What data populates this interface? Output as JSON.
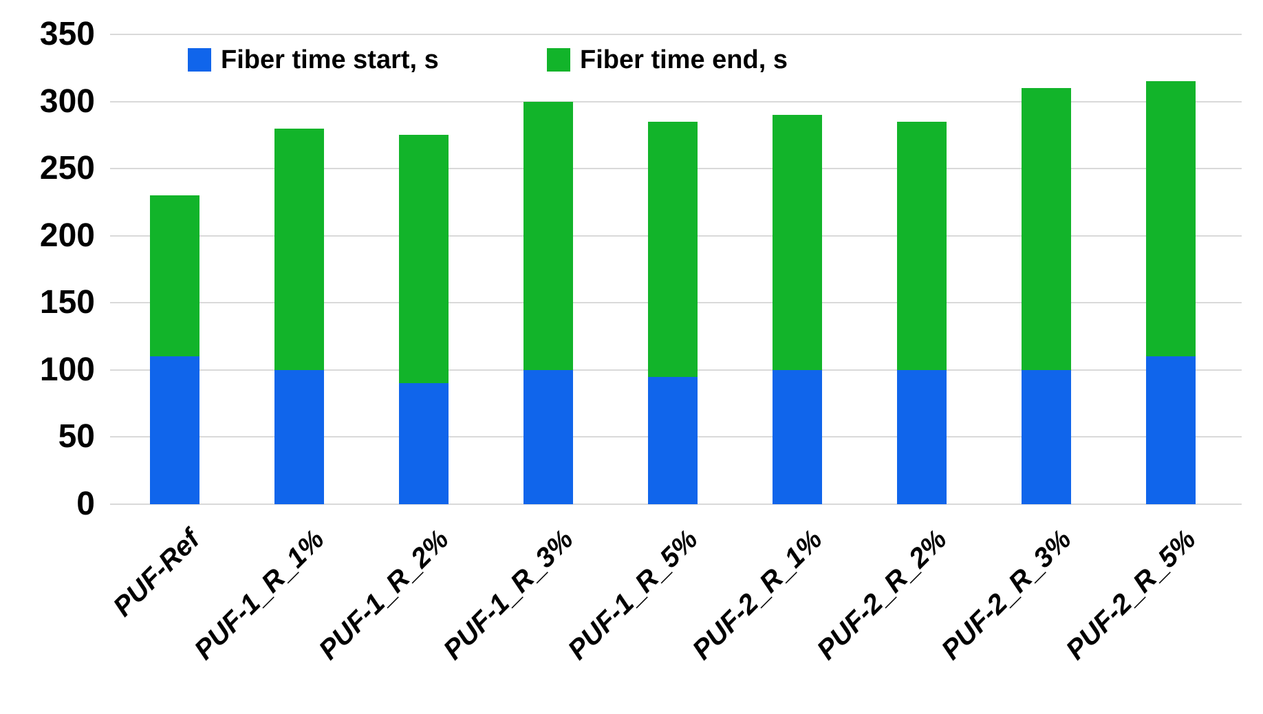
{
  "chart_data": {
    "type": "bar",
    "subtype": "overlaid-stacked-columns",
    "title": "",
    "xlabel": "",
    "ylabel": "",
    "categories": [
      "PUF-Ref",
      "PUF-1_R_1%",
      "PUF-1_R_2%",
      "PUF-1_R_3%",
      "PUF-1_R_5%",
      "PUF-2_R_1%",
      "PUF-2_R_2%",
      "PUF-2_R_3%",
      "PUF-2_R_5%"
    ],
    "series": [
      {
        "name": "Fiber time start, s",
        "color": "#1065EB",
        "values": [
          110,
          100,
          90,
          100,
          95,
          100,
          100,
          100,
          110
        ]
      },
      {
        "name": "Fiber time end, s",
        "color": "#12B42A",
        "values": [
          230,
          280,
          275,
          300,
          285,
          290,
          285,
          310,
          315
        ]
      }
    ],
    "ylim": [
      0,
      350
    ],
    "yticks": [
      0,
      50,
      100,
      150,
      200,
      250,
      300,
      350
    ],
    "grid": true,
    "gridline_color": "#d9d9d9",
    "legend_position": "top",
    "tick_label_color": "#000000"
  },
  "layout_note_values_are_absolute_bar_tops": "green bar drawn to 'end' value, blue bar drawn in front to 'start' value"
}
